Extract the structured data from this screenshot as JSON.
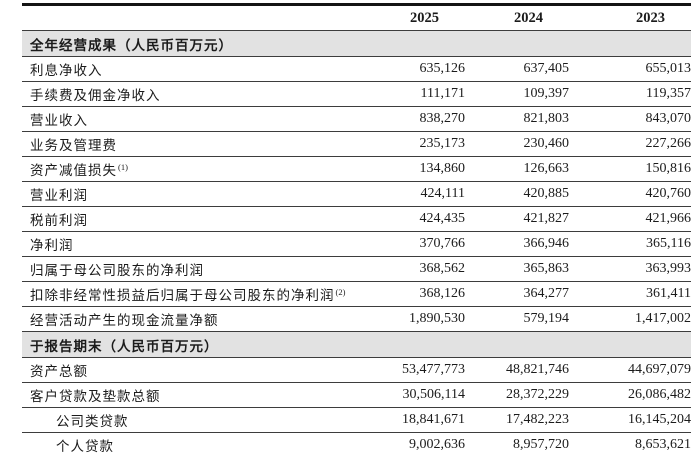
{
  "colors": {
    "section_bg": "#e2e2e2",
    "rule": "#3d3d3d",
    "top_rule": "#141414",
    "text": "#1b1b1b"
  },
  "table": {
    "years": [
      "2025",
      "2024",
      "2023"
    ],
    "sections": [
      {
        "header": "全年经营成果（人民币百万元）",
        "rows": [
          {
            "label": "利息净收入",
            "values": [
              "635,126",
              "637,405",
              "655,013"
            ]
          },
          {
            "label": "手续费及佣金净收入",
            "values": [
              "111,171",
              "109,397",
              "119,357"
            ]
          },
          {
            "label": "营业收入",
            "values": [
              "838,270",
              "821,803",
              "843,070"
            ]
          },
          {
            "label": "业务及管理费",
            "values": [
              "235,173",
              "230,460",
              "227,266"
            ]
          },
          {
            "label": "资产减值损失",
            "sup": "(1)",
            "values": [
              "134,860",
              "126,663",
              "150,816"
            ]
          },
          {
            "label": "营业利润",
            "values": [
              "424,111",
              "420,885",
              "420,760"
            ]
          },
          {
            "label": "税前利润",
            "values": [
              "424,435",
              "421,827",
              "421,966"
            ]
          },
          {
            "label": "净利润",
            "values": [
              "370,766",
              "366,946",
              "365,116"
            ]
          },
          {
            "label": "归属于母公司股东的净利润",
            "values": [
              "368,562",
              "365,863",
              "363,993"
            ]
          },
          {
            "label": "扣除非经常性损益后归属于母公司股东的净利润",
            "sup": "(2)",
            "values": [
              "368,126",
              "364,277",
              "361,411"
            ]
          },
          {
            "label": "经营活动产生的现金流量净额",
            "values": [
              "1,890,530",
              "579,194",
              "1,417,002"
            ]
          }
        ]
      },
      {
        "header": "于报告期末（人民币百万元）",
        "rows": [
          {
            "label": "资产总额",
            "values": [
              "53,477,773",
              "48,821,746",
              "44,697,079"
            ]
          },
          {
            "label": "客户贷款及垫款总额",
            "values": [
              "30,506,114",
              "28,372,229",
              "26,086,482"
            ]
          },
          {
            "label": "公司类贷款",
            "indent": true,
            "values": [
              "18,841,671",
              "17,482,223",
              "16,145,204"
            ]
          },
          {
            "label": "个人贷款",
            "indent": true,
            "values": [
              "9,002,636",
              "8,957,720",
              "8,653,621"
            ]
          }
        ]
      }
    ]
  }
}
